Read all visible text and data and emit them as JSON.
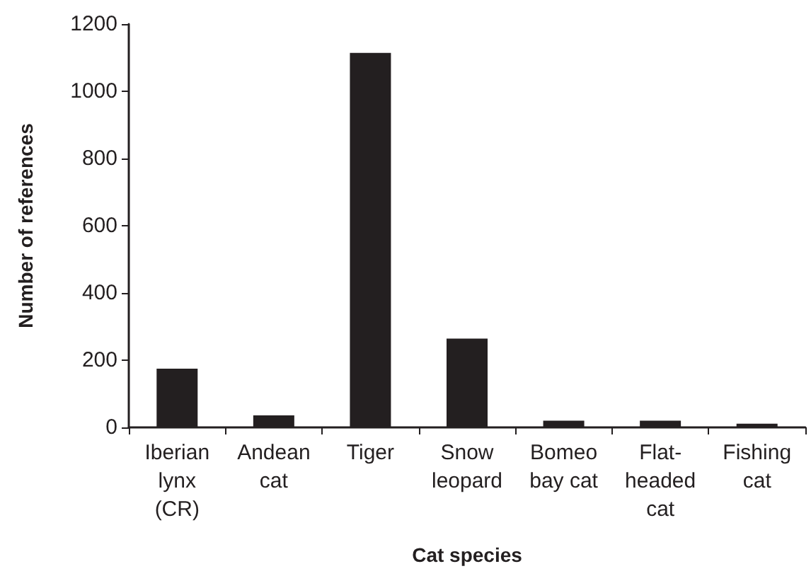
{
  "chart_data": {
    "type": "bar",
    "xlabel": "Cat species",
    "ylabel": "Number of references",
    "categories": [
      "Iberian lynx (CR)",
      "Andean cat",
      "Tiger",
      "Snow leopard",
      "Bomeo bay cat",
      "Flat-headed cat",
      "Fishing cat"
    ],
    "values": [
      175,
      36,
      1114,
      264,
      20,
      20,
      11
    ],
    "color": "#231f20",
    "ylim": [
      0,
      1200
    ],
    "yticks": [
      0,
      200,
      400,
      600,
      800,
      1000,
      1200
    ],
    "grid": false
  }
}
